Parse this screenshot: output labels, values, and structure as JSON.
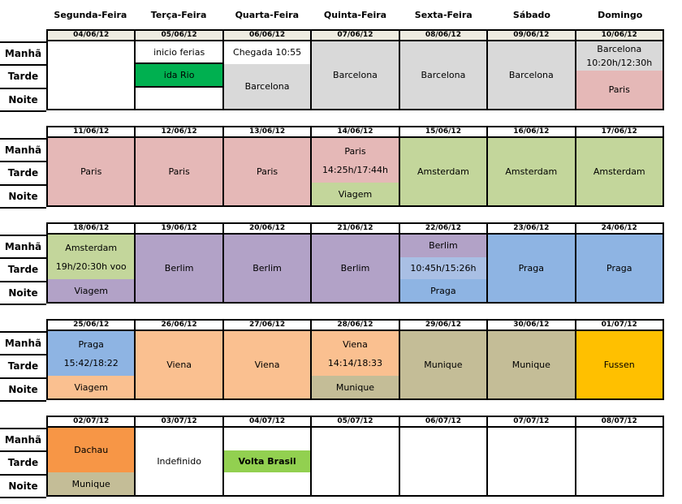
{
  "days": [
    "Segunda-Feira",
    "Terça-Feira",
    "Quarta-Feira",
    "Quinta-Feira",
    "Sexta-Feira",
    "Sábado",
    "Domingo"
  ],
  "row_labels": [
    "Manhã",
    "Tarde",
    "Noite"
  ],
  "colors": {
    "grid_border": "#000000",
    "week1_date_row": "#EEECE1",
    "barcelona_gray": "#D9D9D9",
    "paris_pink": "#E5B8B7",
    "amsterdam_green": "#C3D69B",
    "berlim_purple": "#B2A2C7",
    "praga_blue": "#8EB4E3",
    "praga_blue_light": "#A9BFE4",
    "viena_orange": "#FAC090",
    "munique_khaki": "#C4BD97",
    "fussen_gold": "#FFC000",
    "dachau_orange": "#F79646",
    "ida_rio_green": "#00B050",
    "volta_brasil_green": "#92D050"
  },
  "weeks": [
    {
      "date_bg": "#EEECE1",
      "dates": [
        "04/06/12",
        "05/06/12",
        "06/06/12",
        "07/06/12",
        "08/06/12",
        "09/06/12",
        "10/06/12"
      ],
      "cells": [
        {
          "segments": [
            {
              "bg": "#FFFFFF",
              "flex": 3,
              "lines": []
            }
          ]
        },
        {
          "segments": [
            {
              "bg": "#FFFFFF",
              "flex": 1,
              "lines": [
                "inicio ferias"
              ]
            },
            {
              "bg": "#00B050",
              "flex": 1,
              "lines": [
                "ida Rio"
              ],
              "bordered": true
            },
            {
              "bg": "#FFFFFF",
              "flex": 1,
              "lines": []
            }
          ]
        },
        {
          "segments": [
            {
              "bg": "#FFFFFF",
              "flex": 1,
              "lines": [
                "Chegada 10:55"
              ]
            },
            {
              "bg": "#D9D9D9",
              "flex": 2,
              "lines": [
                "Barcelona"
              ]
            }
          ]
        },
        {
          "segments": [
            {
              "bg": "#D9D9D9",
              "flex": 3,
              "lines": [
                "Barcelona"
              ]
            }
          ]
        },
        {
          "segments": [
            {
              "bg": "#D9D9D9",
              "flex": 3,
              "lines": [
                "Barcelona"
              ]
            }
          ]
        },
        {
          "segments": [
            {
              "bg": "#D9D9D9",
              "flex": 3,
              "lines": [
                "Barcelona"
              ]
            }
          ]
        },
        {
          "segments": [
            {
              "bg": "#D9D9D9",
              "flex": 1.3,
              "lines": [
                "Barcelona",
                "10:20h/12:30h"
              ]
            },
            {
              "bg": "#E5B8B7",
              "flex": 1.7,
              "lines": [
                "Paris"
              ]
            }
          ]
        }
      ]
    },
    {
      "date_bg": "#FFFFFF",
      "dates": [
        "11/06/12",
        "12/06/12",
        "13/06/12",
        "14/06/12",
        "15/06/12",
        "16/06/12",
        "17/06/12"
      ],
      "cells": [
        {
          "segments": [
            {
              "bg": "#E5B8B7",
              "flex": 3,
              "lines": [
                "Paris"
              ]
            }
          ]
        },
        {
          "segments": [
            {
              "bg": "#E5B8B7",
              "flex": 3,
              "lines": [
                "Paris"
              ]
            }
          ]
        },
        {
          "segments": [
            {
              "bg": "#E5B8B7",
              "flex": 3,
              "lines": [
                "Paris"
              ]
            }
          ]
        },
        {
          "segments": [
            {
              "bg": "#E5B8B7",
              "flex": 2,
              "lines": [
                "Paris",
                "14:25h/17:44h"
              ]
            },
            {
              "bg": "#C3D69B",
              "flex": 1,
              "lines": [
                "Viagem"
              ]
            }
          ]
        },
        {
          "segments": [
            {
              "bg": "#C3D69B",
              "flex": 3,
              "lines": [
                "Amsterdam"
              ]
            }
          ]
        },
        {
          "segments": [
            {
              "bg": "#C3D69B",
              "flex": 3,
              "lines": [
                "Amsterdam"
              ]
            }
          ]
        },
        {
          "segments": [
            {
              "bg": "#C3D69B",
              "flex": 3,
              "lines": [
                "Amsterdam"
              ]
            }
          ]
        }
      ]
    },
    {
      "date_bg": "#FFFFFF",
      "dates": [
        "18/06/12",
        "19/06/12",
        "20/06/12",
        "21/06/12",
        "22/06/12",
        "23/06/12",
        "24/06/12"
      ],
      "cells": [
        {
          "segments": [
            {
              "bg": "#C3D69B",
              "flex": 2,
              "lines": [
                "Amsterdam",
                "19h/20:30h voo"
              ]
            },
            {
              "bg": "#B2A2C7",
              "flex": 1,
              "lines": [
                "Viagem"
              ]
            }
          ]
        },
        {
          "segments": [
            {
              "bg": "#B2A2C7",
              "flex": 3,
              "lines": [
                "Berlim"
              ]
            }
          ]
        },
        {
          "segments": [
            {
              "bg": "#B2A2C7",
              "flex": 3,
              "lines": [
                "Berlim"
              ]
            }
          ]
        },
        {
          "segments": [
            {
              "bg": "#B2A2C7",
              "flex": 3,
              "lines": [
                "Berlim"
              ]
            }
          ]
        },
        {
          "segments": [
            {
              "bg": "#B2A2C7",
              "flex": 1,
              "lines": [
                "Berlim"
              ]
            },
            {
              "bg": "#A9BFE4",
              "flex": 1,
              "lines": [
                "10:45h/15:26h"
              ]
            },
            {
              "bg": "#8EB4E3",
              "flex": 1,
              "lines": [
                "Praga"
              ]
            }
          ]
        },
        {
          "segments": [
            {
              "bg": "#8EB4E3",
              "flex": 3,
              "lines": [
                "Praga"
              ]
            }
          ]
        },
        {
          "segments": [
            {
              "bg": "#8EB4E3",
              "flex": 3,
              "lines": [
                "Praga"
              ]
            }
          ]
        }
      ]
    },
    {
      "date_bg": "#FFFFFF",
      "dates": [
        "25/06/12",
        "26/06/12",
        "27/06/12",
        "28/06/12",
        "29/06/12",
        "30/06/12",
        "01/07/12"
      ],
      "cells": [
        {
          "segments": [
            {
              "bg": "#8EB4E3",
              "flex": 2,
              "lines": [
                "Praga",
                "15:42/18:22"
              ]
            },
            {
              "bg": "#FAC090",
              "flex": 1,
              "lines": [
                "Viagem"
              ]
            }
          ]
        },
        {
          "segments": [
            {
              "bg": "#FAC090",
              "flex": 3,
              "lines": [
                "Viena"
              ]
            }
          ]
        },
        {
          "segments": [
            {
              "bg": "#FAC090",
              "flex": 3,
              "lines": [
                "Viena"
              ]
            }
          ]
        },
        {
          "segments": [
            {
              "bg": "#FAC090",
              "flex": 2,
              "lines": [
                "Viena",
                "14:14/18:33"
              ]
            },
            {
              "bg": "#C4BD97",
              "flex": 1,
              "lines": [
                "Munique"
              ]
            }
          ]
        },
        {
          "segments": [
            {
              "bg": "#C4BD97",
              "flex": 3,
              "lines": [
                "Munique"
              ]
            }
          ]
        },
        {
          "segments": [
            {
              "bg": "#C4BD97",
              "flex": 3,
              "lines": [
                "Munique"
              ]
            }
          ]
        },
        {
          "segments": [
            {
              "bg": "#FFC000",
              "flex": 3,
              "lines": [
                "Fussen"
              ]
            }
          ]
        }
      ]
    },
    {
      "date_bg": "#FFFFFF",
      "dates": [
        "02/07/12",
        "03/07/12",
        "04/07/12",
        "05/07/12",
        "06/07/12",
        "07/07/12",
        "08/07/12"
      ],
      "cells": [
        {
          "segments": [
            {
              "bg": "#F79646",
              "flex": 2,
              "lines": [
                "Dachau"
              ]
            },
            {
              "bg": "#C4BD97",
              "flex": 1,
              "lines": [
                "Munique"
              ]
            }
          ]
        },
        {
          "segments": [
            {
              "bg": "#FFFFFF",
              "flex": 3,
              "lines": [
                "Indefinido"
              ]
            }
          ]
        },
        {
          "segments": [
            {
              "bg": "#FFFFFF",
              "flex": 1,
              "lines": []
            },
            {
              "bg": "#92D050",
              "flex": 1,
              "lines": [
                "Volta Brasil"
              ],
              "bold": true
            },
            {
              "bg": "#FFFFFF",
              "flex": 1,
              "lines": []
            }
          ]
        },
        {
          "segments": [
            {
              "bg": "#FFFFFF",
              "flex": 3,
              "lines": []
            }
          ]
        },
        {
          "segments": [
            {
              "bg": "#FFFFFF",
              "flex": 3,
              "lines": []
            }
          ]
        },
        {
          "segments": [
            {
              "bg": "#FFFFFF",
              "flex": 3,
              "lines": []
            }
          ]
        },
        {
          "segments": [
            {
              "bg": "#FFFFFF",
              "flex": 3,
              "lines": []
            }
          ]
        }
      ]
    }
  ]
}
